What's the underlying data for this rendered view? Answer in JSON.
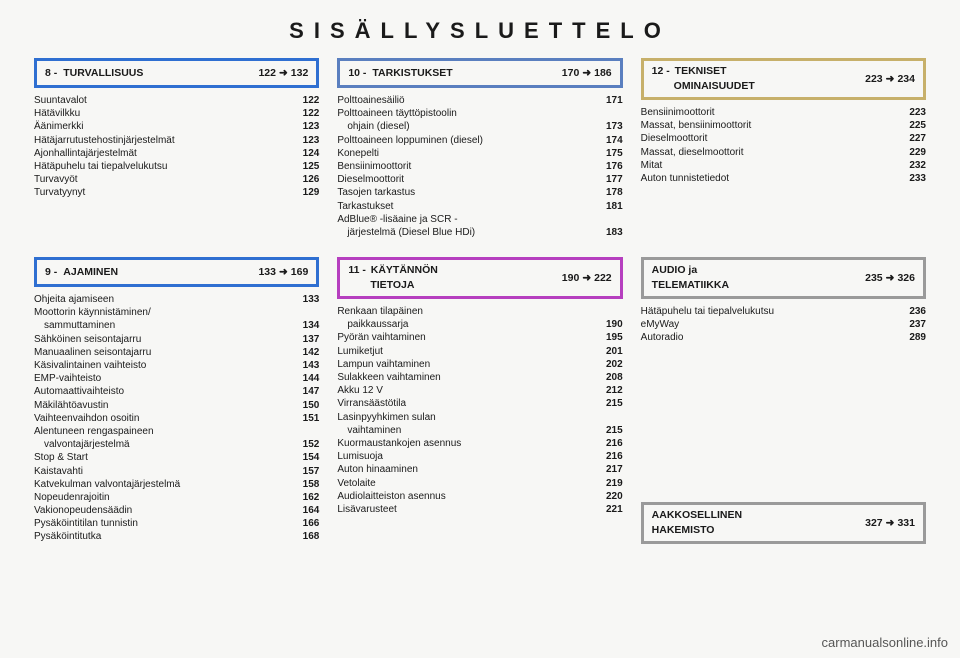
{
  "title": "SISÄLLYSLUETTELO",
  "watermark": "carmanualsonline.info",
  "colors": {
    "c8": "#2f6fd1",
    "c9": "#2f6fd1",
    "c10": "#5a7fbf",
    "c11": "#b63fbf",
    "c12": "#c7b06a",
    "audio": "#9a9a9a",
    "index": "#9a9a9a",
    "arrow": "➜"
  },
  "sections": {
    "s8": {
      "num": "8 -",
      "title": "TURVALLISUUS",
      "range_from": "122",
      "range_to": "132",
      "items": [
        {
          "l": "Suuntavalot",
          "p": "122"
        },
        {
          "l": "Hätävilkku",
          "p": "122"
        },
        {
          "l": "Äänimerkki",
          "p": "123"
        },
        {
          "l": "Hätäjarrutustehostinjärjestelmät",
          "p": "123"
        },
        {
          "l": "Ajonhallintajärjestelmät",
          "p": "124"
        },
        {
          "l": "Hätäpuhelu tai tiepalvelukutsu",
          "p": "125"
        },
        {
          "l": "Turvavyöt",
          "p": "126"
        },
        {
          "l": "Turvatyynyt",
          "p": "129"
        }
      ]
    },
    "s10": {
      "num": "10 -",
      "title": "TARKISTUKSET",
      "range_from": "170",
      "range_to": "186",
      "items": [
        {
          "l": "Polttoainesäiliö",
          "p": "171"
        },
        {
          "l": "Polttoaineen täyttöpistoolin",
          "p": ""
        },
        {
          "l": "ohjain (diesel)",
          "p": "173",
          "indent": true
        },
        {
          "l": "Polttoaineen loppuminen (diesel)",
          "p": "174"
        },
        {
          "l": "Konepelti",
          "p": "175"
        },
        {
          "l": "Bensiinimoottorit",
          "p": "176"
        },
        {
          "l": "Dieselmoottorit",
          "p": "177"
        },
        {
          "l": "Tasojen tarkastus",
          "p": "178"
        },
        {
          "l": "Tarkastukset",
          "p": "181"
        },
        {
          "l": "AdBlue® -lisäaine ja SCR -",
          "p": ""
        },
        {
          "l": "järjestelmä (Diesel Blue HDi)",
          "p": "183",
          "indent": true
        }
      ]
    },
    "s12": {
      "num": "12 -",
      "title_a": "TEKNISET",
      "title_b": "OMINAISUUDET",
      "range_from": "223",
      "range_to": "234",
      "items": [
        {
          "l": "Bensiinimoottorit",
          "p": "223"
        },
        {
          "l": "Massat, bensiinimoottorit",
          "p": "225"
        },
        {
          "l": "Dieselmoottorit",
          "p": "227"
        },
        {
          "l": "Massat, dieselmoottorit",
          "p": "229"
        },
        {
          "l": "Mitat",
          "p": "232"
        },
        {
          "l": "Auton tunnistetiedot",
          "p": "233"
        }
      ]
    },
    "s9": {
      "num": "9 -",
      "title": "AJAMINEN",
      "range_from": "133",
      "range_to": "169",
      "items": [
        {
          "l": "Ohjeita ajamiseen",
          "p": "133"
        },
        {
          "l": "Moottorin käynnistäminen/",
          "p": ""
        },
        {
          "l": "sammuttaminen",
          "p": "134",
          "indent": true
        },
        {
          "l": "Sähköinen seisontajarru",
          "p": "137"
        },
        {
          "l": "Manuaalinen seisontajarru",
          "p": "142"
        },
        {
          "l": "Käsivalintainen vaihteisto",
          "p": "143"
        },
        {
          "l": "EMP-vaihteisto",
          "p": "144"
        },
        {
          "l": "Automaattivaihteisto",
          "p": "147"
        },
        {
          "l": "Mäkilähtöavustin",
          "p": "150"
        },
        {
          "l": "Vaihteenvaihdon osoitin",
          "p": "151"
        },
        {
          "l": "Alentuneen rengaspaineen",
          "p": ""
        },
        {
          "l": "valvontajärjestelmä",
          "p": "152",
          "indent": true
        },
        {
          "l": "Stop & Start",
          "p": "154"
        },
        {
          "l": "Kaistavahti",
          "p": "157"
        },
        {
          "l": "Katvekulman valvontajärjestelmä",
          "p": "158"
        },
        {
          "l": "Nopeudenrajoitin",
          "p": "162"
        },
        {
          "l": "Vakionopeudensäädin",
          "p": "164"
        },
        {
          "l": "Pysäköintitilan tunnistin",
          "p": "166"
        },
        {
          "l": "Pysäköintitutka",
          "p": "168"
        }
      ]
    },
    "s11": {
      "num": "11 -",
      "title_a": "KÄYTÄNNÖN",
      "title_b": "TIETOJA",
      "range_from": "190",
      "range_to": "222",
      "items": [
        {
          "l": "Renkaan tilapäinen",
          "p": ""
        },
        {
          "l": "paikkaussarja",
          "p": "190",
          "indent": true
        },
        {
          "l": "Pyörän vaihtaminen",
          "p": "195"
        },
        {
          "l": "Lumiketjut",
          "p": "201"
        },
        {
          "l": "Lampun vaihtaminen",
          "p": "202"
        },
        {
          "l": "Sulakkeen vaihtaminen",
          "p": "208"
        },
        {
          "l": "Akku 12 V",
          "p": "212"
        },
        {
          "l": "Virransäästötila",
          "p": "215"
        },
        {
          "l": "Lasinpyyhkimen sulan",
          "p": ""
        },
        {
          "l": "vaihtaminen",
          "p": "215",
          "indent": true
        },
        {
          "l": "Kuormaustankojen asennus",
          "p": "216"
        },
        {
          "l": "Lumisuoja",
          "p": "216"
        },
        {
          "l": "Auton hinaaminen",
          "p": "217"
        },
        {
          "l": "Vetolaite",
          "p": "219"
        },
        {
          "l": "Audiolaitteiston asennus",
          "p": "220"
        },
        {
          "l": "Lisävarusteet",
          "p": "221"
        }
      ]
    },
    "audio": {
      "title_a": "AUDIO ja",
      "title_b": "TELEMATIIKKA",
      "range_from": "235",
      "range_to": "326",
      "items": [
        {
          "l": "Hätäpuhelu tai tiepalvelukutsu",
          "p": "236"
        },
        {
          "l": "eMyWay",
          "p": "237"
        },
        {
          "l": "Autoradio",
          "p": "289"
        }
      ]
    },
    "index": {
      "title_a": "AAKKOSELLINEN",
      "title_b": "HAKEMISTO",
      "range_from": "327",
      "range_to": "331"
    }
  }
}
